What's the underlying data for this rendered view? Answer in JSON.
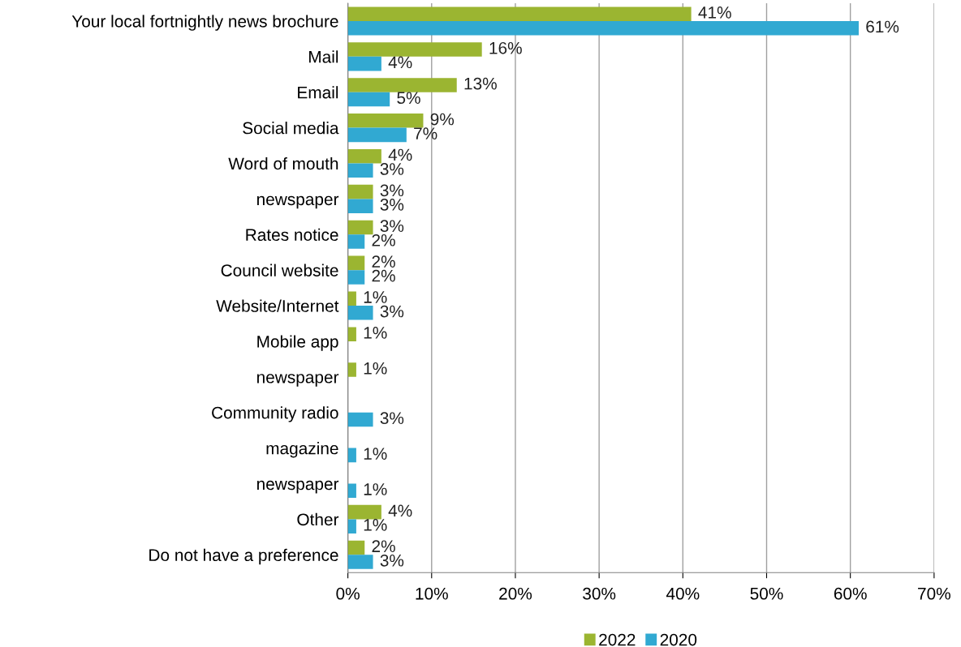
{
  "chart_data": {
    "type": "bar",
    "orientation": "horizontal",
    "categories": [
      "Your local fortnightly news brochure",
      "Mail",
      "Email",
      "Social media",
      "Word of mouth",
      "newspaper",
      "Rates notice",
      "Council website",
      "Website/Internet",
      "Mobile app",
      "newspaper",
      "Community radio",
      "magazine",
      "newspaper",
      "Other",
      "Do not have a preference"
    ],
    "series": [
      {
        "name": "2022",
        "color": "#9bb531",
        "values": [
          41,
          16,
          13,
          9,
          4,
          3,
          3,
          2,
          1,
          1,
          1,
          null,
          null,
          null,
          4,
          2
        ],
        "value_labels": [
          "41%",
          "16%",
          "13%",
          "9%",
          "4%",
          "3%",
          "3%",
          "2%",
          "1%",
          "1%",
          "1%",
          null,
          null,
          null,
          "4%",
          "2%"
        ]
      },
      {
        "name": "2020",
        "color": "#31a9d2",
        "values": [
          61,
          4,
          5,
          7,
          3,
          3,
          2,
          2,
          3,
          null,
          null,
          3,
          1,
          1,
          1,
          3
        ],
        "value_labels": [
          "61%",
          "4%",
          "5%",
          "7%",
          "3%",
          "3%",
          "2%",
          "2%",
          "3%",
          null,
          null,
          "3%",
          "1%",
          "1%",
          "1%",
          "3%"
        ]
      }
    ],
    "xlim": [
      0,
      70
    ],
    "xticks": [
      {
        "value": 0,
        "label": "0%"
      },
      {
        "value": 10,
        "label": "10%"
      },
      {
        "value": 20,
        "label": "20%"
      },
      {
        "value": 30,
        "label": "30%"
      },
      {
        "value": 40,
        "label": "40%"
      },
      {
        "value": 50,
        "label": "50%"
      },
      {
        "value": 60,
        "label": "60%"
      },
      {
        "value": 70,
        "label": "70%"
      }
    ],
    "grid": "x",
    "legend": "bottom"
  }
}
